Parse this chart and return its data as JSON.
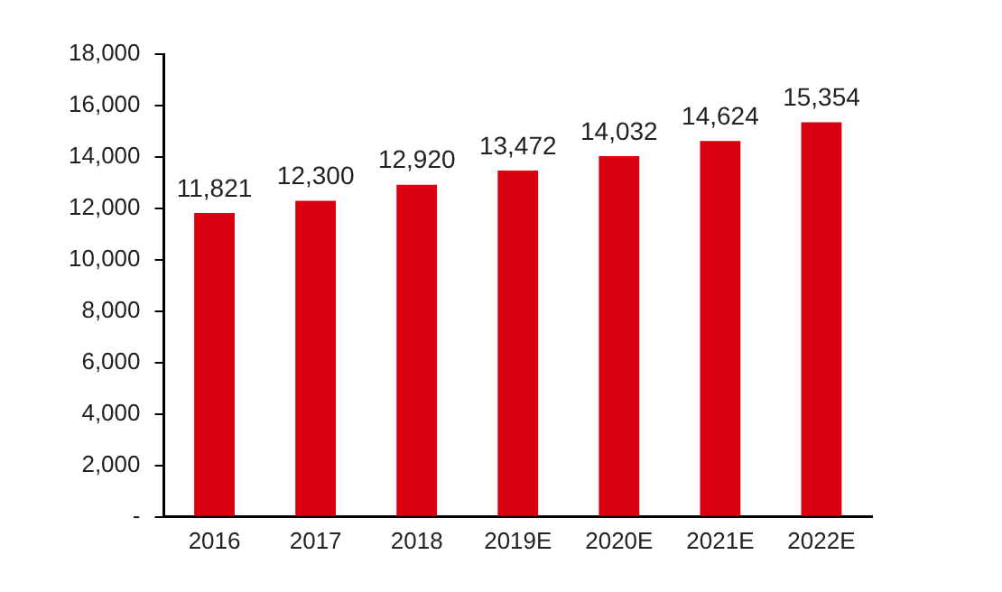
{
  "chart_data": {
    "type": "bar",
    "categories": [
      "2016",
      "2017",
      "2018",
      "2019E",
      "2020E",
      "2021E",
      "2022E"
    ],
    "values": [
      11821,
      12300,
      12920,
      13472,
      14032,
      14624,
      15354
    ],
    "color": "#d9000f",
    "ylim": [
      0,
      18000
    ],
    "yticks": [
      {
        "value": 0,
        "label": "-"
      },
      {
        "value": 2000,
        "label": "2,000"
      },
      {
        "value": 4000,
        "label": "4,000"
      },
      {
        "value": 6000,
        "label": "6,000"
      },
      {
        "value": 8000,
        "label": "8,000"
      },
      {
        "value": 10000,
        "label": "10,000"
      },
      {
        "value": 12000,
        "label": "12,000"
      },
      {
        "value": 14000,
        "label": "14,000"
      },
      {
        "value": 16000,
        "label": "16,000"
      },
      {
        "value": 18000,
        "label": "18,000"
      }
    ],
    "value_labels": [
      "11,821",
      "12,300",
      "12,920",
      "13,472",
      "14,032",
      "14,624",
      "15,354"
    ],
    "grid": false,
    "legend": false
  }
}
